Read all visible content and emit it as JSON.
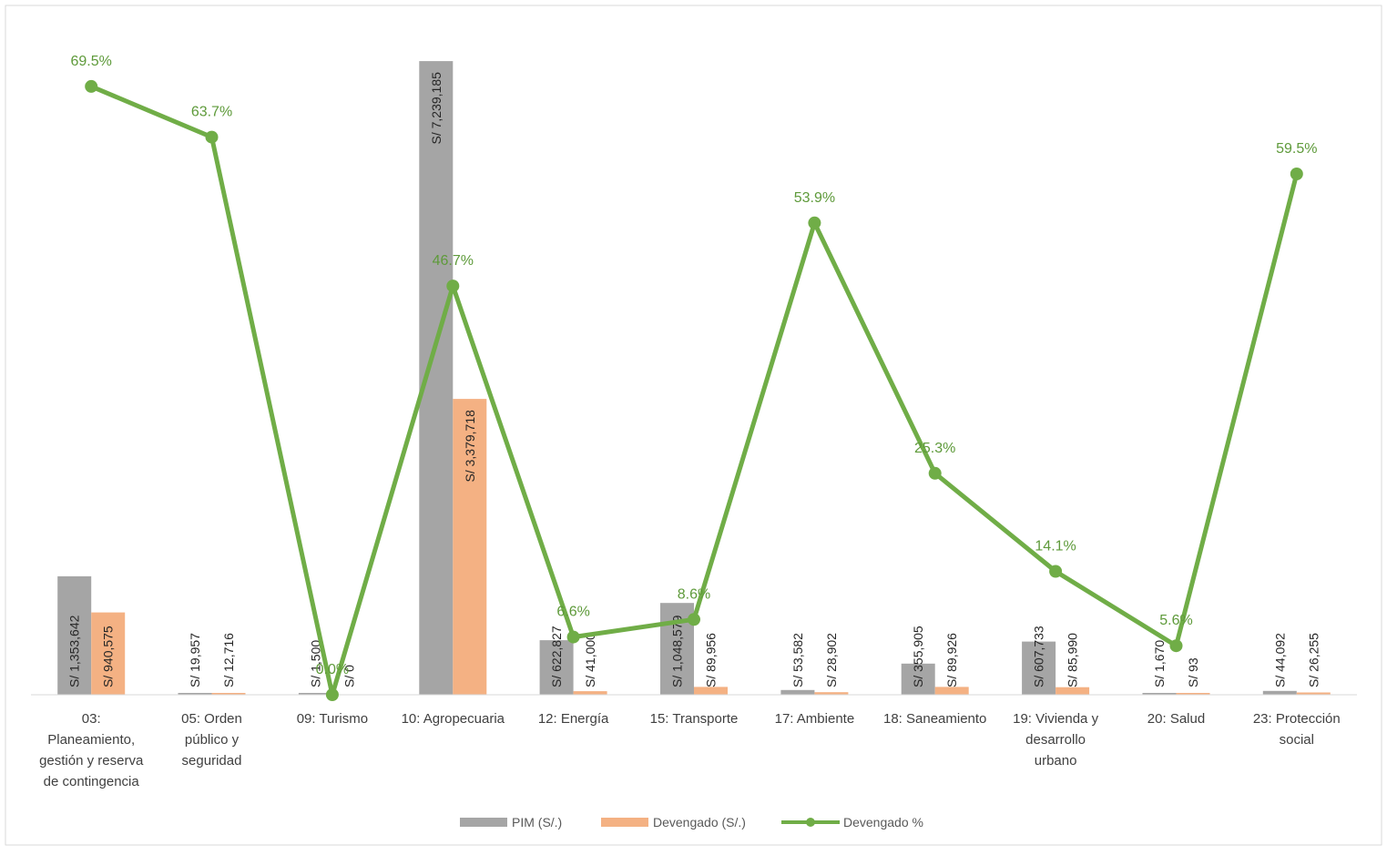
{
  "chart_data": {
    "type": "bar",
    "title": "",
    "xlabel": "",
    "ylabel": "",
    "categories": [
      [
        "03:",
        "Planeamiento,",
        "gestión y reserva",
        "de contingencia"
      ],
      [
        "05: Orden",
        "público y",
        "seguridad"
      ],
      [
        "09: Turismo"
      ],
      [
        "10: Agropecuaria"
      ],
      [
        "12: Energía"
      ],
      [
        "15: Transporte"
      ],
      [
        "17: Ambiente"
      ],
      [
        "18: Saneamiento"
      ],
      [
        "19: Vivienda y",
        "desarrollo",
        "urbano"
      ],
      [
        "20: Salud"
      ],
      [
        "23: Protección",
        "social"
      ]
    ],
    "series": [
      {
        "name": "PIM (S/.)",
        "kind": "bar",
        "color": "#a5a5a5",
        "values": [
          1353642,
          19957,
          1500,
          7239185,
          622827,
          1048579,
          53582,
          355905,
          607733,
          1670,
          44092
        ],
        "labels": [
          "S/ 1,353,642",
          "S/ 19,957",
          "S/ 1,500",
          "S/ 7,239,185",
          "S/ 622,827",
          "S/ 1,048,579",
          "S/ 53,582",
          "S/ 355,905",
          "S/ 607,733",
          "S/ 1,670",
          "S/ 44,092"
        ]
      },
      {
        "name": "Devengado (S/.)",
        "kind": "bar",
        "color": "#f4b183",
        "values": [
          940575,
          12716,
          0,
          3379718,
          41000,
          89956,
          28902,
          89926,
          85990,
          93,
          26255
        ],
        "labels": [
          "S/ 940,575",
          "S/ 12,716",
          "S/ 0",
          "S/ 3,379,718",
          "S/ 41,000",
          "S/ 89,956",
          "S/ 28,902",
          "S/ 89,926",
          "S/ 85,990",
          "S/ 93",
          "S/ 26,255"
        ]
      },
      {
        "name": "Devengado %",
        "kind": "line",
        "color": "#70ad47",
        "values": [
          69.5,
          63.7,
          0.0,
          46.7,
          6.6,
          8.6,
          53.9,
          25.3,
          14.1,
          5.6,
          59.5
        ],
        "labels": [
          "69.5%",
          "63.7%",
          "0.0%",
          "46.7%",
          "6.6%",
          "8.6%",
          "53.9%",
          "25.3%",
          "14.1%",
          "5.6%",
          "59.5%"
        ]
      }
    ],
    "bar_axis_range": [
      0,
      7500000
    ],
    "line_axis_range": [
      0,
      75
    ],
    "grid": false,
    "legend_position": "bottom"
  }
}
